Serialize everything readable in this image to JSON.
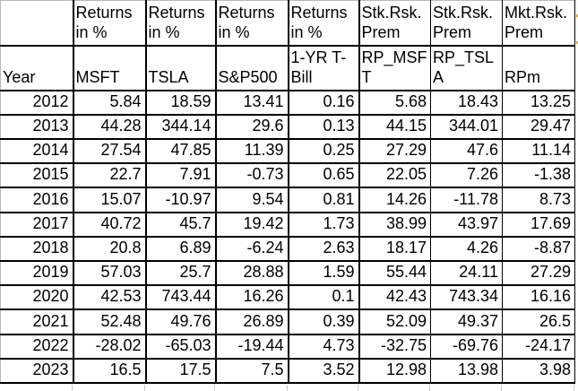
{
  "sheet": {
    "group_headers": [
      "",
      "Returns in %",
      "Returns in %",
      "Returns in %",
      "Returns in %",
      "Stk.Rsk.Prem",
      "Stk.Rsk.Prem",
      "Mkt.Rsk.Prem"
    ],
    "column_headers": [
      "Year",
      "MSFT",
      "TSLA",
      "S&P500",
      "1-YR T-Bill",
      "RP_MSFT",
      "RP_TSLA",
      "RPm"
    ],
    "rows": [
      [
        "2012",
        "5.84",
        "18.59",
        "13.41",
        "0.16",
        "5.68",
        "18.43",
        "13.25"
      ],
      [
        "2013",
        "44.28",
        "344.14",
        "29.6",
        "0.13",
        "44.15",
        "344.01",
        "29.47"
      ],
      [
        "2014",
        "27.54",
        "47.85",
        "11.39",
        "0.25",
        "27.29",
        "47.6",
        "11.14"
      ],
      [
        "2015",
        "22.7",
        "7.91",
        "-0.73",
        "0.65",
        "22.05",
        "7.26",
        "-1.38"
      ],
      [
        "2016",
        "15.07",
        "-10.97",
        "9.54",
        "0.81",
        "14.26",
        "-11.78",
        "8.73"
      ],
      [
        "2017",
        "40.72",
        "45.7",
        "19.42",
        "1.73",
        "38.99",
        "43.97",
        "17.69"
      ],
      [
        "2018",
        "20.8",
        "6.89",
        "-6.24",
        "2.63",
        "18.17",
        "4.26",
        "-8.87"
      ],
      [
        "2019",
        "57.03",
        "25.7",
        "28.88",
        "1.59",
        "55.44",
        "24.11",
        "27.29"
      ],
      [
        "2020",
        "42.53",
        "743.44",
        "16.26",
        "0.1",
        "42.43",
        "743.34",
        "16.16"
      ],
      [
        "2021",
        "52.48",
        "49.76",
        "26.89",
        "0.39",
        "52.09",
        "49.37",
        "26.5"
      ],
      [
        "2022",
        "-28.02",
        "-65.03",
        "-19.44",
        "4.73",
        "-32.75",
        "-69.76",
        "-24.17"
      ],
      [
        "2023",
        "16.5",
        "17.5",
        "7.5",
        "3.52",
        "12.98",
        "13.98",
        "3.98"
      ]
    ]
  },
  "colors": {
    "text": "#000000",
    "background": "#ffffff",
    "cell_border": "#000000",
    "outer_gridline": "#b9b9b9",
    "next_row_gridline": "#c9c9c9",
    "clipped_marker": "#e9a13b"
  }
}
